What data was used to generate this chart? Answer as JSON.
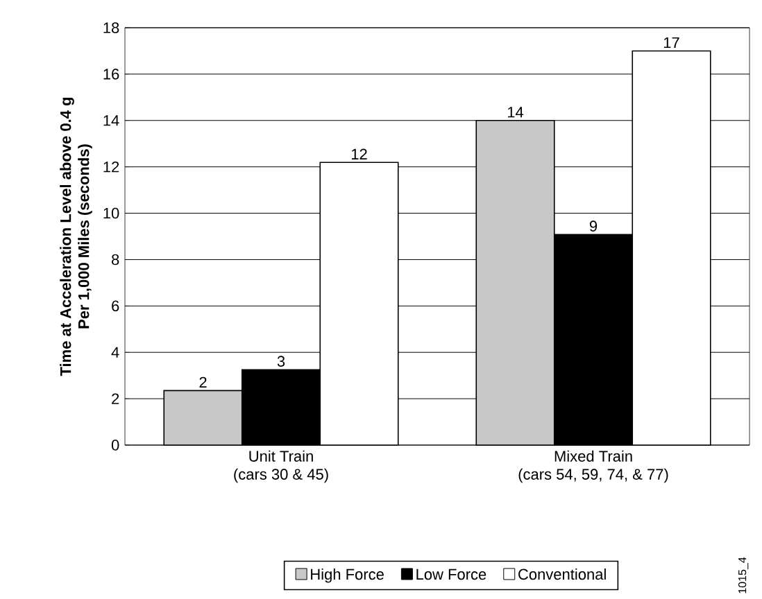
{
  "chart_data": {
    "type": "bar",
    "ylabel": "Time at Acceleration Level above 0.4 g\nPer 1,000 Miles (seconds)",
    "categories": [
      "Unit Train\n(cars 30 & 45)",
      "Mixed Train\n(cars 54, 59, 74, & 77)"
    ],
    "series": [
      {
        "name": "High Force",
        "color": "#c8c8c8",
        "values": [
          2.35,
          14.0
        ],
        "value_labels": [
          "2",
          "14"
        ]
      },
      {
        "name": "Low Force",
        "color": "#000000",
        "values": [
          3.25,
          9.08
        ],
        "value_labels": [
          "3",
          "9"
        ]
      },
      {
        "name": "Conventional",
        "color": "#ffffff",
        "values": [
          12.19,
          17.0
        ],
        "value_labels": [
          "12",
          "17"
        ]
      }
    ],
    "ylim": [
      0,
      18
    ],
    "yticks": [
      0,
      2,
      4,
      6,
      8,
      10,
      12,
      14,
      16,
      18
    ],
    "grid": "y",
    "legend": "bottom",
    "annotations": [
      "1015_4"
    ]
  }
}
